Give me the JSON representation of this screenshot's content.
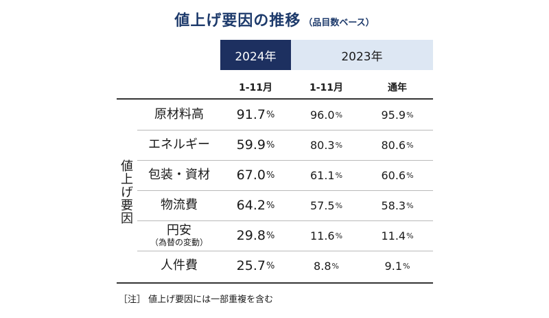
{
  "title": {
    "main": "値上げ要因の推移",
    "sub": "（品目数ベース）"
  },
  "year_headers": [
    "2024年",
    "2023年"
  ],
  "sub_headers": [
    "1-11月",
    "1-11月",
    "通年"
  ],
  "group_label": "値上げ要因",
  "rows": [
    {
      "label": "原材料高",
      "sublabel": "",
      "v2024": "91.7",
      "v2023_1_11": "96.0",
      "v2023_full": "95.9"
    },
    {
      "label": "エネルギー",
      "sublabel": "",
      "v2024": "59.9",
      "v2023_1_11": "80.3",
      "v2023_full": "80.6"
    },
    {
      "label": "包装・資材",
      "sublabel": "",
      "v2024": "67.0",
      "v2023_1_11": "61.1",
      "v2023_full": "60.6"
    },
    {
      "label": "物流費",
      "sublabel": "",
      "v2024": "64.2",
      "v2023_1_11": "57.5",
      "v2023_full": "58.3"
    },
    {
      "label": "円安",
      "sublabel": "（為替の変動）",
      "v2024": "29.8",
      "v2023_1_11": "11.6",
      "v2023_full": "11.4"
    },
    {
      "label": "人件費",
      "sublabel": "",
      "v2024": "25.7",
      "v2023_1_11": "8.8",
      "v2023_full": "9.1"
    }
  ],
  "percent_sign": "%",
  "note": "［注］ 値上げ要因には一部重複を含む",
  "colors": {
    "title": "#1d3a6b",
    "header_2024_bg": "#1d3060",
    "header_2023_bg": "#dde7f3"
  }
}
